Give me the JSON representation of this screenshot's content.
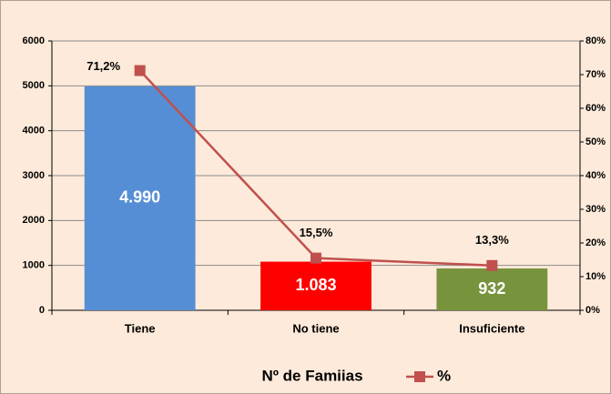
{
  "chart_data": {
    "type": "bar_line",
    "categories": [
      "Tiene",
      "No tiene",
      "Insuficiente"
    ],
    "series": [
      {
        "name": "Nº de Famiias",
        "type": "bar",
        "colors": [
          "#558ed5",
          "#ff0000",
          "#77933c"
        ],
        "values": [
          4990,
          1083,
          932
        ],
        "value_labels": [
          "4.990",
          "1.083",
          "932"
        ]
      },
      {
        "name": "%",
        "type": "line",
        "axis": "y2",
        "color": "#c0504d",
        "values": [
          71.2,
          15.5,
          13.3
        ],
        "value_labels": [
          "71,2%",
          "15,5%",
          "13,3%"
        ]
      }
    ],
    "ylim": [
      0,
      6000
    ],
    "yticks": [
      0,
      1000,
      2000,
      3000,
      4000,
      5000,
      6000
    ],
    "y2lim": [
      0,
      80
    ],
    "y2ticks": [
      {
        "value": 0,
        "label": "0%"
      },
      {
        "value": 10,
        "label": "10%"
      },
      {
        "value": 20,
        "label": "20%"
      },
      {
        "value": 30,
        "label": "30%"
      },
      {
        "value": 40,
        "label": "40%"
      },
      {
        "value": 50,
        "label": "50%"
      },
      {
        "value": 60,
        "label": "60%"
      },
      {
        "value": 70,
        "label": "70%"
      },
      {
        "value": 80,
        "label": "80%"
      }
    ],
    "grid": true,
    "legend": "bottom"
  }
}
